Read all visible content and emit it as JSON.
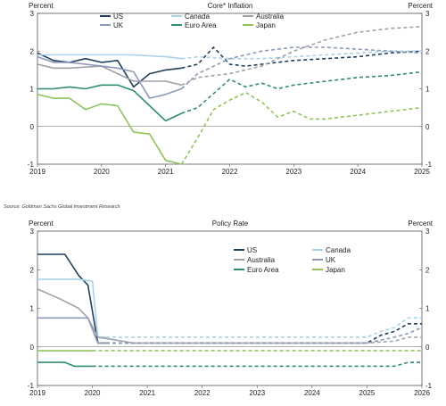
{
  "source": "Source: Goldman Sachs Global Investment Research",
  "chart_data": [
    {
      "type": "line",
      "title": "Core* Inflation",
      "ylabel_left": "Percent",
      "ylabel_right": "Percent",
      "ylim": [
        -1,
        3
      ],
      "xlim": [
        2019,
        2025
      ],
      "yticks": [
        -1,
        0,
        1,
        2,
        3
      ],
      "xticks": [
        "2019",
        "2020",
        "2021",
        "2022",
        "2023",
        "2024",
        "2025"
      ],
      "legend_placement": "top",
      "forecast_start": 2021.25,
      "series": [
        {
          "name": "US",
          "color": "#1f3f5c",
          "x": [
            2019.0,
            2019.25,
            2019.5,
            2019.75,
            2020.0,
            2020.25,
            2020.5,
            2020.75,
            2021.0,
            2021.25,
            2021.5,
            2021.75,
            2022.0,
            2022.25,
            2022.5,
            2022.75,
            2023.0,
            2023.5,
            2024.0,
            2024.5,
            2025.0
          ],
          "y": [
            1.95,
            1.75,
            1.7,
            1.8,
            1.7,
            1.75,
            1.05,
            1.4,
            1.5,
            1.55,
            1.65,
            2.1,
            1.65,
            1.6,
            1.65,
            1.7,
            1.75,
            1.8,
            1.85,
            1.95,
            2.0
          ]
        },
        {
          "name": "Canada",
          "color": "#a9d3e8",
          "x": [
            2019.0,
            2019.5,
            2020.0,
            2020.5,
            2021.0,
            2021.25,
            2021.5,
            2022.0,
            2022.5,
            2023.0,
            2023.5,
            2024.0,
            2024.5,
            2025.0
          ],
          "y": [
            1.9,
            1.9,
            1.9,
            1.9,
            1.85,
            1.8,
            1.85,
            1.8,
            1.8,
            1.85,
            1.9,
            1.95,
            2.0,
            2.0
          ]
        },
        {
          "name": "Australia",
          "color": "#a0a0a8",
          "x": [
            2019.0,
            2019.25,
            2019.5,
            2020.0,
            2020.5,
            2021.0,
            2021.25,
            2021.5,
            2022.0,
            2022.5,
            2023.0,
            2023.5,
            2024.0,
            2024.5,
            2025.0
          ],
          "y": [
            1.65,
            1.55,
            1.55,
            1.6,
            1.2,
            1.2,
            1.1,
            1.3,
            1.4,
            1.6,
            2.0,
            2.3,
            2.5,
            2.6,
            2.65
          ]
        },
        {
          "name": "UK",
          "color": "#8c9ab8",
          "x": [
            2019.0,
            2019.25,
            2019.5,
            2019.75,
            2020.0,
            2020.25,
            2020.5,
            2020.75,
            2021.0,
            2021.25,
            2021.5,
            2022.0,
            2022.5,
            2023.0,
            2023.5,
            2024.0,
            2024.5,
            2025.0
          ],
          "y": [
            1.85,
            1.7,
            1.7,
            1.65,
            1.6,
            1.55,
            1.45,
            0.75,
            0.85,
            1.0,
            1.4,
            1.8,
            2.0,
            2.1,
            2.1,
            2.05,
            2.0,
            1.95
          ]
        },
        {
          "name": "Euro Area",
          "color": "#2e8b74",
          "x": [
            2019.0,
            2019.25,
            2019.5,
            2019.75,
            2020.0,
            2020.25,
            2020.5,
            2020.75,
            2021.0,
            2021.25,
            2021.5,
            2022.0,
            2022.25,
            2022.5,
            2022.75,
            2023.0,
            2023.5,
            2024.0,
            2024.5,
            2025.0
          ],
          "y": [
            1.0,
            1.0,
            1.05,
            1.0,
            1.1,
            1.1,
            0.95,
            0.55,
            0.15,
            0.35,
            0.5,
            1.25,
            1.05,
            1.15,
            1.0,
            1.1,
            1.2,
            1.3,
            1.35,
            1.45
          ]
        },
        {
          "name": "Japan",
          "color": "#8fc45a",
          "x": [
            2019.0,
            2019.25,
            2019.5,
            2019.75,
            2020.0,
            2020.25,
            2020.5,
            2020.75,
            2021.0,
            2021.25,
            2021.5,
            2021.75,
            2022.0,
            2022.25,
            2022.5,
            2022.75,
            2023.0,
            2023.25,
            2023.5,
            2024.0,
            2024.5,
            2025.0
          ],
          "y": [
            0.85,
            0.75,
            0.75,
            0.45,
            0.6,
            0.55,
            -0.15,
            -0.2,
            -0.9,
            -1.0,
            -0.3,
            0.45,
            0.7,
            0.9,
            0.65,
            0.25,
            0.4,
            0.2,
            0.2,
            0.3,
            0.4,
            0.5
          ]
        }
      ]
    },
    {
      "type": "line",
      "title": "Policy Rate",
      "ylabel_left": "Percent",
      "ylabel_right": "Percent",
      "ylim": [
        -1,
        3
      ],
      "xlim": [
        2019,
        2026
      ],
      "yticks": [
        -1,
        0,
        1,
        2,
        3
      ],
      "xticks": [
        "2019",
        "2020",
        "2021",
        "2022",
        "2023",
        "2024",
        "2025",
        "2026"
      ],
      "legend_placement": "top-center",
      "forecast_start": 2020.75,
      "series": [
        {
          "name": "US",
          "color": "#1f3f5c",
          "x": [
            2019.0,
            2019.5,
            2019.75,
            2019.92,
            2020.1,
            2020.25,
            2021,
            2022,
            2023,
            2024,
            2025.0,
            2025.25,
            2025.5,
            2025.75,
            2026.0
          ],
          "y": [
            2.4,
            2.4,
            1.85,
            1.6,
            0.1,
            0.1,
            0.1,
            0.1,
            0.1,
            0.1,
            0.1,
            0.3,
            0.4,
            0.6,
            0.6
          ]
        },
        {
          "name": "Canada",
          "color": "#a9d3e8",
          "x": [
            2019.0,
            2019.75,
            2020.0,
            2020.1,
            2020.25,
            2021,
            2022,
            2023,
            2024,
            2025.0,
            2025.25,
            2025.5,
            2025.75,
            2026.0
          ],
          "y": [
            1.75,
            1.75,
            1.7,
            0.25,
            0.25,
            0.25,
            0.25,
            0.25,
            0.25,
            0.25,
            0.4,
            0.5,
            0.75,
            0.75
          ]
        },
        {
          "name": "Australia",
          "color": "#a0a0a8",
          "x": [
            2019.0,
            2019.4,
            2019.75,
            2019.92,
            2020.1,
            2020.75,
            2021,
            2022,
            2023,
            2024,
            2025.0,
            2025.5,
            2025.75,
            2026.0
          ],
          "y": [
            1.5,
            1.25,
            1.0,
            0.75,
            0.25,
            0.1,
            0.1,
            0.1,
            0.1,
            0.1,
            0.1,
            0.15,
            0.25,
            0.25
          ]
        },
        {
          "name": "UK",
          "color": "#8c9ab8",
          "x": [
            2019.0,
            2019.92,
            2020.1,
            2020.25,
            2021,
            2022,
            2023,
            2024,
            2025.0,
            2025.5,
            2025.75,
            2026.0
          ],
          "y": [
            0.75,
            0.75,
            0.1,
            0.1,
            0.1,
            0.1,
            0.1,
            0.1,
            0.1,
            0.25,
            0.35,
            0.5
          ]
        },
        {
          "name": "Euro Area",
          "color": "#2e8b74",
          "x": [
            2019.0,
            2019.5,
            2019.67,
            2020,
            2021,
            2022,
            2023,
            2024,
            2025.0,
            2025.5,
            2025.75,
            2026.0
          ],
          "y": [
            -0.4,
            -0.4,
            -0.5,
            -0.5,
            -0.5,
            -0.5,
            -0.5,
            -0.5,
            -0.5,
            -0.5,
            -0.4,
            -0.4
          ]
        },
        {
          "name": "Japan",
          "color": "#8fc45a",
          "x": [
            2019.0,
            2020,
            2021,
            2022,
            2023,
            2024,
            2025.0,
            2026.0
          ],
          "y": [
            -0.1,
            -0.1,
            -0.1,
            -0.1,
            -0.1,
            -0.1,
            -0.1,
            -0.1
          ]
        }
      ]
    }
  ]
}
